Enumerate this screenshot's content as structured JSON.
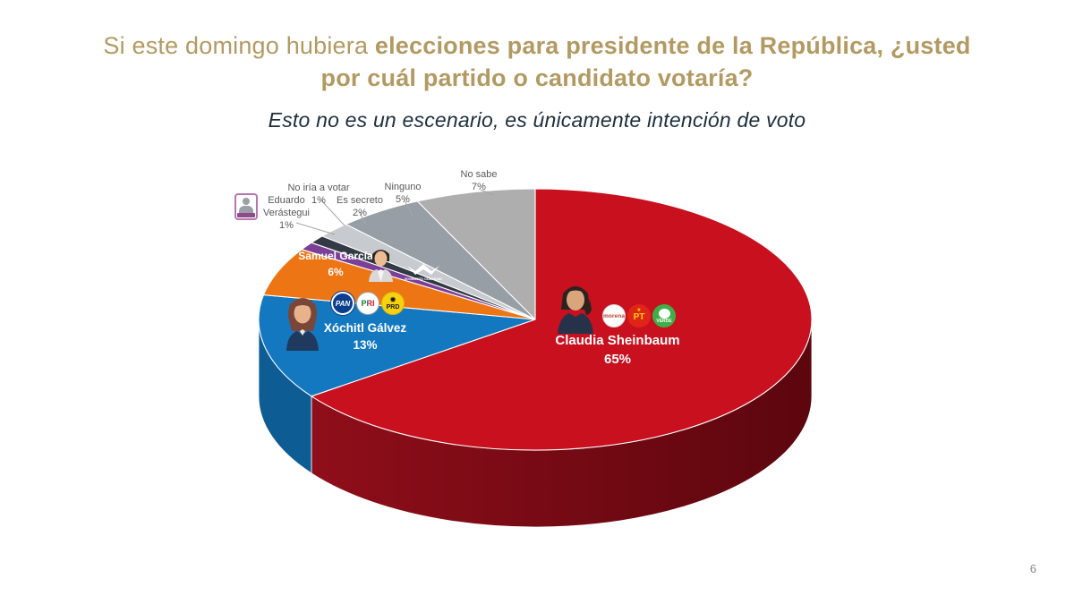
{
  "page": {
    "number": "6"
  },
  "header": {
    "title_regular": "Si este domingo hubiera ",
    "title_bold": "elecciones para presidente de la República, ¿usted por cuál partido o candidato votaría?",
    "subtitle": "Esto no es un escenario, es únicamente intención de voto",
    "title_color": "#b29a62",
    "subtitle_color": "#1d2f3f"
  },
  "chart_data": {
    "type": "pie",
    "style": "3d-pie",
    "unit": "%",
    "title": "Si este domingo hubiera elecciones para presidente de la República, ¿usted por cuál partido o candidato votaría?",
    "subtitle": "Esto no es un escenario, es únicamente intención de voto",
    "start_angle_deg": 0,
    "direction": "clockwise",
    "legend": "labels-on-chart",
    "slices": [
      {
        "name": "Claudia Sheinbaum",
        "value": 65,
        "pct": "65%",
        "color": "#c8101e",
        "side_color": "#8f0e1a",
        "side_color_dark": "#5c060e",
        "label_style": "on-slice-white",
        "logos": [
          "morena",
          "PT",
          "VERDE"
        ]
      },
      {
        "name": "Xóchitl Gálvez",
        "value": 13,
        "pct": "13%",
        "color": "#1478c0",
        "side_color": "#0d5c94",
        "label_style": "on-slice-white",
        "logos": [
          "PAN",
          "PRI",
          "PRD"
        ]
      },
      {
        "name": "Samuel García",
        "value": 6,
        "pct": "6%",
        "color": "#ee7514",
        "side_color": "#a84f0b",
        "label_style": "on-slice-white",
        "logos": [
          "MOVIMIENTO CIUDADANO"
        ]
      },
      {
        "name": "Eduardo Verástegui",
        "value": 1,
        "pct": "1%",
        "color": "#7c3f98",
        "side_color": "#54296a",
        "label_style": "callout",
        "name_lines": [
          "Eduardo",
          "Verástegui"
        ]
      },
      {
        "name": "No iría a votar",
        "value": 1,
        "pct": "1%",
        "color": "#333a45",
        "side_color": "#20242c",
        "label_style": "callout"
      },
      {
        "name": "Es secreto",
        "value": 2,
        "pct": "2%",
        "color": "#c7cace",
        "side_color": "#8f9296",
        "label_style": "callout"
      },
      {
        "name": "Ninguno",
        "value": 5,
        "pct": "5%",
        "color": "#989ea5",
        "side_color": "#6b7076",
        "label_style": "callout"
      },
      {
        "name": "No sabe",
        "value": 7,
        "pct": "7%",
        "color": "#aeaeae",
        "side_color": "#7e7e7e",
        "label_style": "callout"
      }
    ],
    "prd_sun_glyph": "✹",
    "pt_star_glyph": "★"
  }
}
